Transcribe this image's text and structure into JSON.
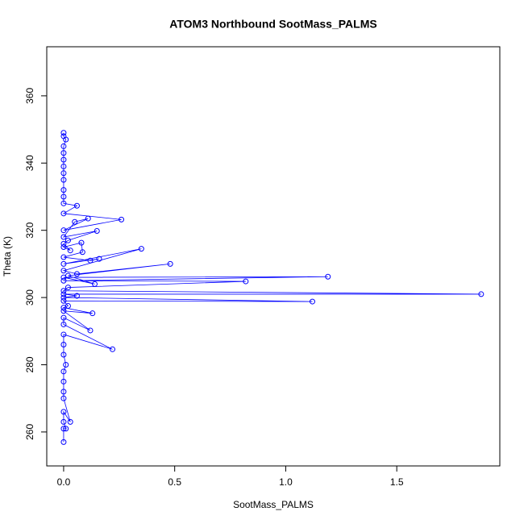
{
  "chart_data": {
    "type": "scatter",
    "title": "ATOM3 Northbound SootMass_PALMS",
    "x_label": "SootMass_PALMS",
    "y_label": "Theta (K)",
    "x": [
      0,
      0,
      0.01,
      0,
      0,
      0.03,
      0,
      0,
      0,
      0,
      0.01,
      0,
      0,
      0,
      0.22,
      0,
      0,
      0.12,
      0,
      0.13,
      0,
      0.02,
      0,
      1.12,
      0,
      0.06,
      0,
      1.88,
      0,
      0.02,
      0.82,
      0,
      1.19,
      0,
      0.14,
      0.02,
      0.48,
      0.06,
      0,
      0.35,
      0,
      0.16,
      0.12,
      0,
      0.085,
      0.08,
      0,
      0.03,
      0,
      0.02,
      0.15,
      0,
      0.05,
      0.11,
      0,
      0.26,
      0,
      0.06,
      0,
      0,
      0,
      0,
      0,
      0,
      0,
      0,
      0,
      0.01,
      0,
      0
    ],
    "series": [
      {
        "color": "#0000ff",
        "connected": true,
        "values": [
          257,
          261,
          261,
          263,
          266,
          263,
          270,
          272,
          275,
          278,
          280,
          283,
          286,
          289,
          284.6,
          292,
          294,
          290.2,
          296,
          295.3,
          297,
          297.5,
          299,
          298.8,
          300,
          300.5,
          301,
          301,
          302,
          303,
          304.8,
          305,
          306.2,
          306,
          304,
          306.5,
          310,
          307,
          308,
          314.5,
          310,
          311.5,
          311,
          312,
          313.5,
          316.3,
          315,
          314,
          316,
          317,
          319.8,
          318,
          322.5,
          323.5,
          320,
          323.2,
          325,
          327.3,
          328,
          330,
          332,
          335,
          337,
          339,
          341,
          343,
          345,
          347,
          348,
          349
        ]
      }
    ],
    "xlim": [
      -0.076,
      1.964
    ],
    "ylim": [
      249.9,
      374.6
    ],
    "xticks": [
      {
        "value": 0,
        "label": "0.0"
      },
      0.5,
      {
        "value": 1,
        "label": "1.0"
      },
      1.5
    ],
    "yticks": [
      260,
      280,
      300,
      320,
      340,
      360
    ]
  }
}
